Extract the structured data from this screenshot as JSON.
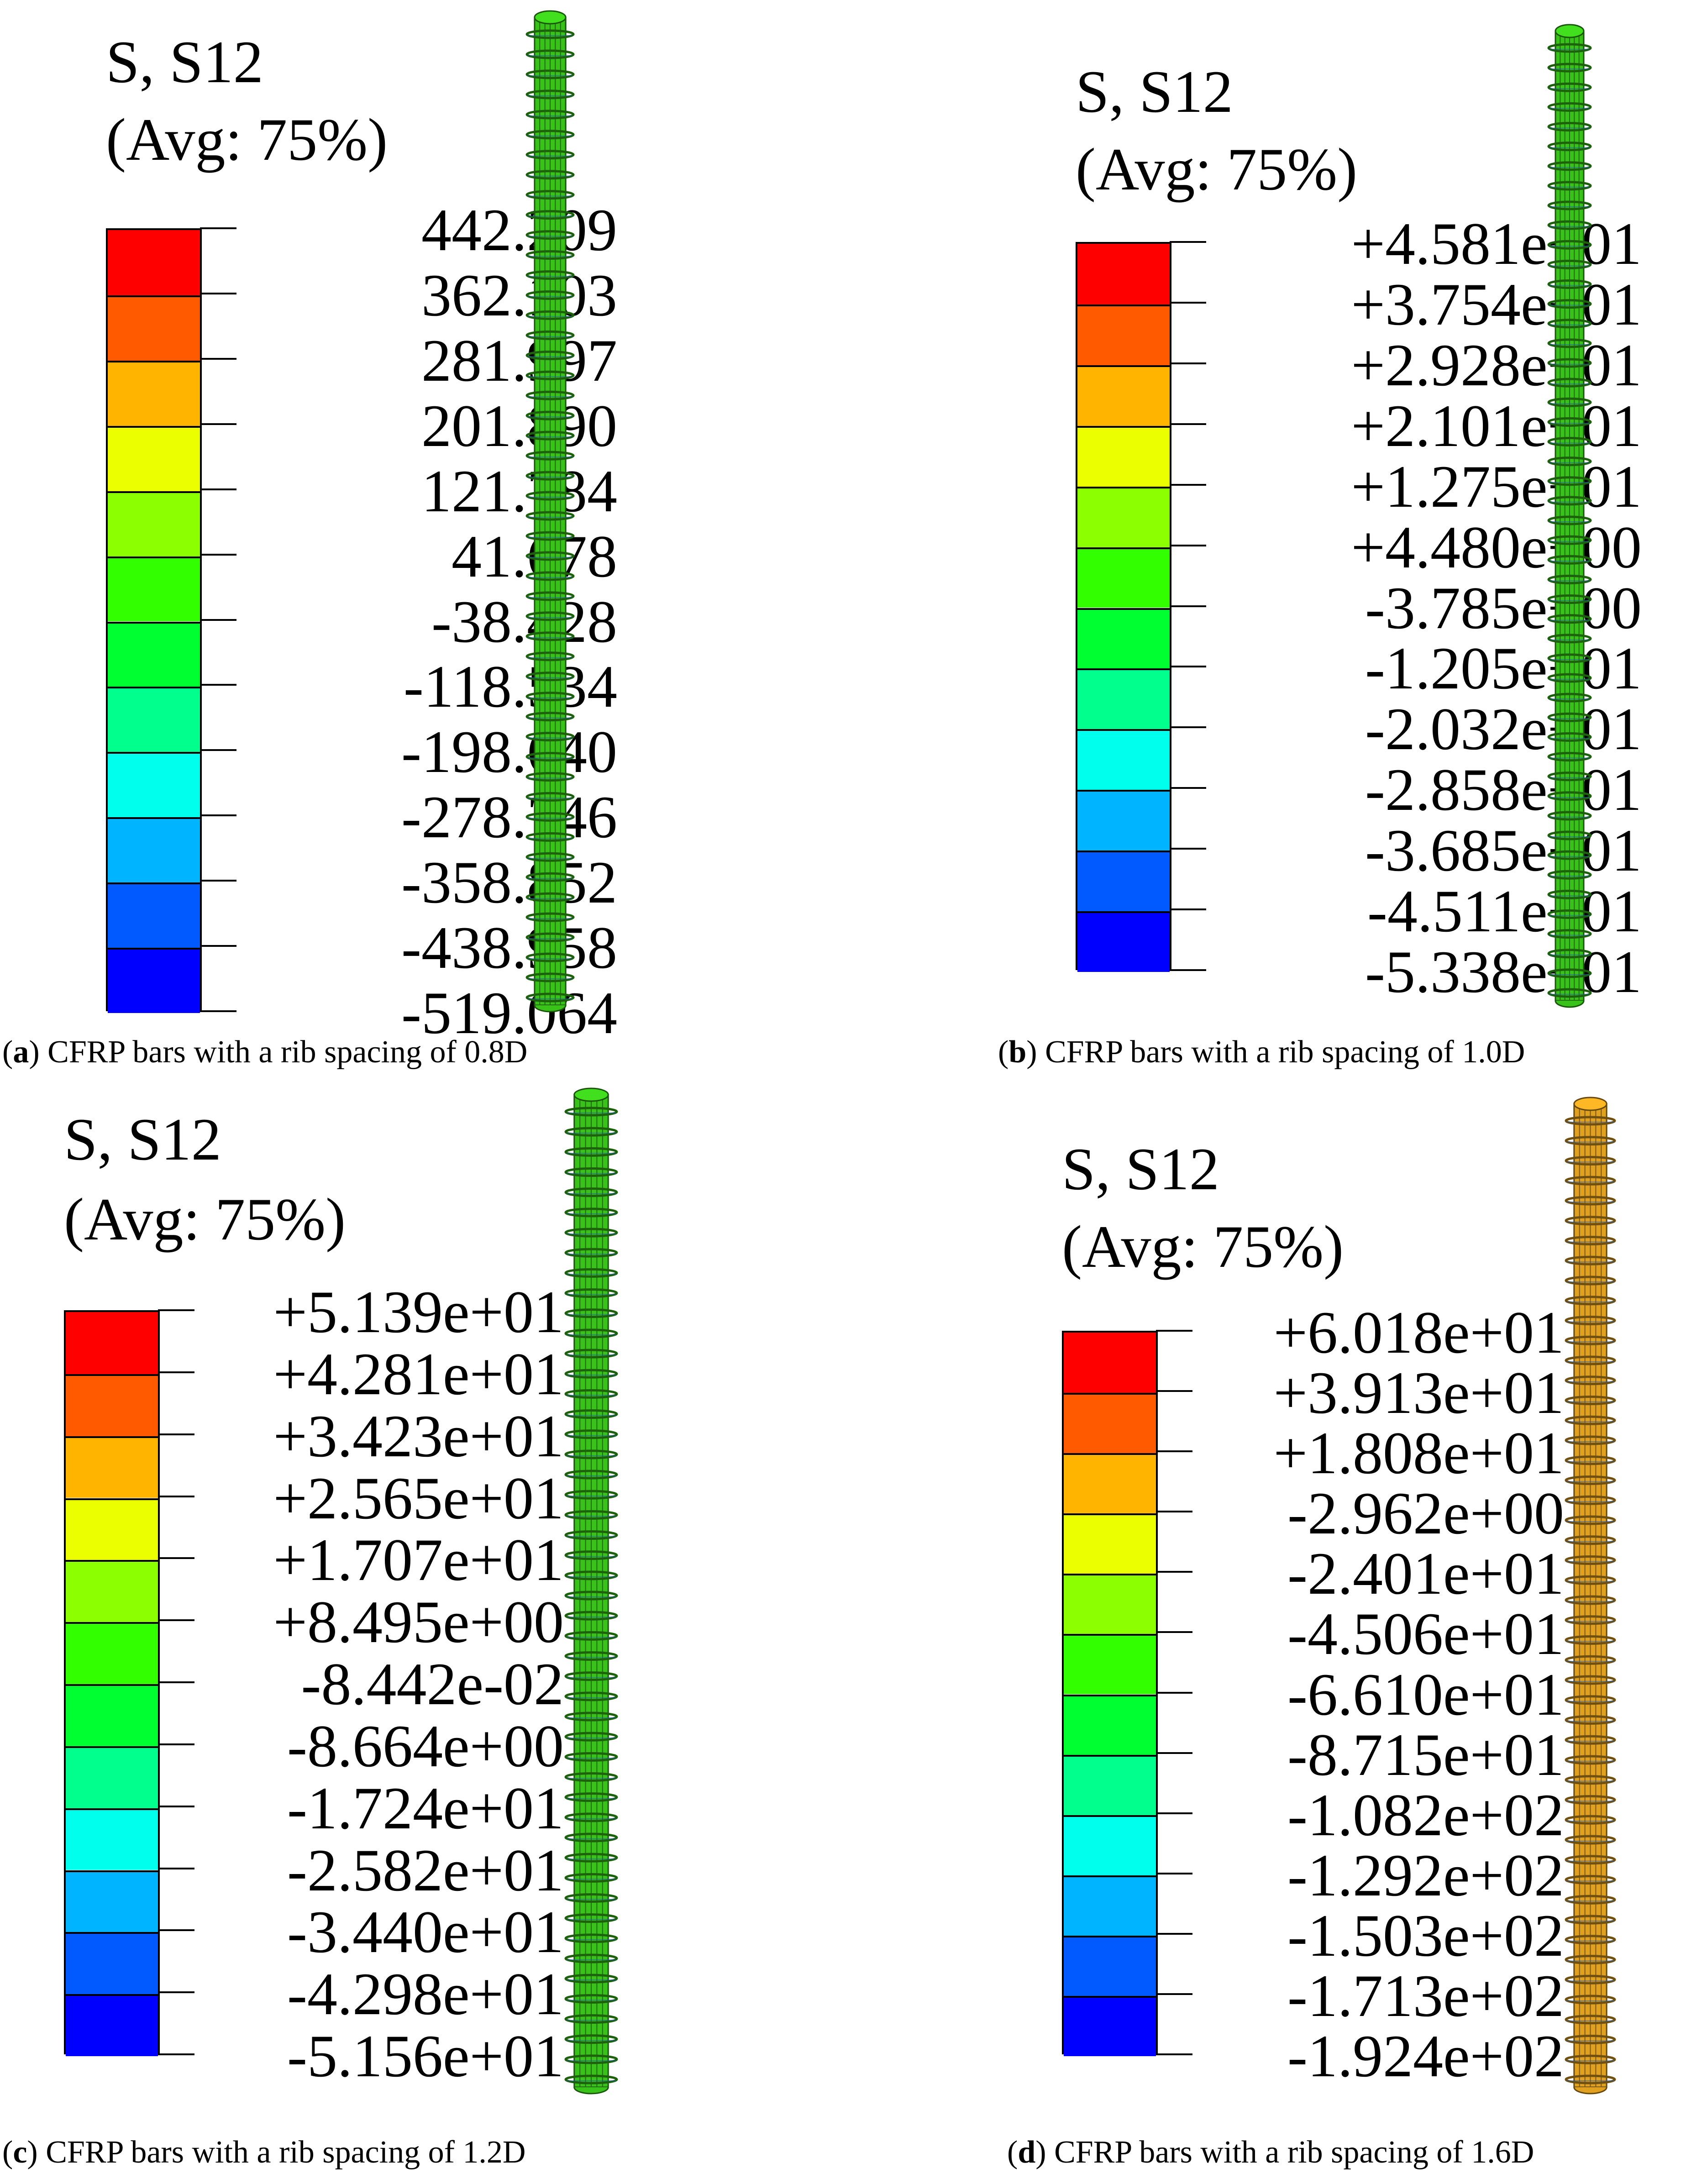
{
  "colors": [
    "#ff0000",
    "#ff5a00",
    "#ffb400",
    "#ecff00",
    "#8cff00",
    "#32ff00",
    "#00ff31",
    "#00ff8c",
    "#00ffec",
    "#00b4ff",
    "#005aff",
    "#0000ff"
  ],
  "panels": [
    {
      "title1": "S, S12",
      "title2": "(Avg: 75%)",
      "values": [
        "442.209",
        "362.103",
        "281.997",
        "201.890",
        "121.784",
        "41.678",
        "-38.428",
        "-118.534",
        "-198.640",
        "-278.746",
        "-358.852",
        "-438.958",
        "-519.064"
      ],
      "bar_color": "#39c21a",
      "caption_letter": "a",
      "caption_text": "CFRP bars with a rib spacing of 0.8D"
    },
    {
      "title1": "S, S12",
      "title2": "(Avg: 75%)",
      "values": [
        "+4.581e+01",
        "+3.754e+01",
        "+2.928e+01",
        "+2.101e+01",
        "+1.275e+01",
        "+4.480e+00",
        "-3.785e+00",
        "-1.205e+01",
        "-2.032e+01",
        "-2.858e+01",
        "-3.685e+01",
        "-4.511e+01",
        "-5.338e+01"
      ],
      "bar_color": "#39c21a",
      "caption_letter": "b",
      "caption_text": "CFRP bars with a rib spacing of 1.0D"
    },
    {
      "title1": "S, S12",
      "title2": "(Avg: 75%)",
      "values": [
        "+5.139e+01",
        "+4.281e+01",
        "+3.423e+01",
        "+2.565e+01",
        "+1.707e+01",
        "+8.495e+00",
        "-8.442e-02",
        "-8.664e+00",
        "-1.724e+01",
        "-2.582e+01",
        "-3.440e+01",
        "-4.298e+01",
        "-5.156e+01"
      ],
      "bar_color": "#39c21a",
      "caption_letter": "c",
      "caption_text": "CFRP bars with a rib spacing of 1.2D"
    },
    {
      "title1": "S, S12",
      "title2": "(Avg: 75%)",
      "values": [
        "+6.018e+01",
        "+3.913e+01",
        "+1.808e+01",
        "-2.962e+00",
        "-2.401e+01",
        "-4.506e+01",
        "-6.610e+01",
        "-8.715e+01",
        "-1.082e+02",
        "-1.292e+02",
        "-1.503e+02",
        "-1.713e+02",
        "-1.924e+02"
      ],
      "bar_color": "#e0a020",
      "caption_letter": "d",
      "caption_text": "CFRP bars with a rib spacing of 1.6D"
    }
  ]
}
